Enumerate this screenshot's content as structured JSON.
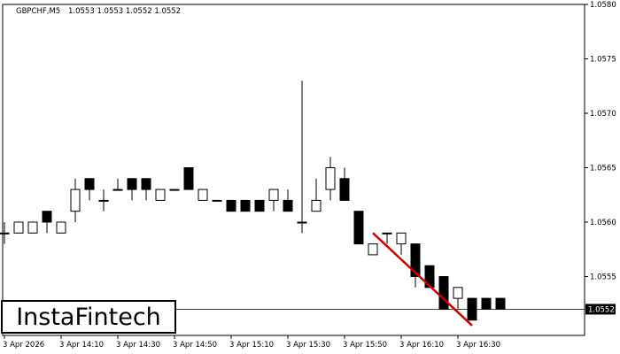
{
  "header": {
    "symbol": "GBPCHF,M5",
    "quote": "1.0553 1.0553 1.0552 1.0552"
  },
  "logo": {
    "text": "InstaFintech"
  },
  "colors": {
    "bull_body": "#ffffff",
    "bear_body": "#000000",
    "outline": "#000000",
    "pattern_line": "#cc0000",
    "price_box": "#000000",
    "price_text": "#ffffff"
  },
  "chart_data": {
    "type": "candlestick",
    "symbol": "GBPCHF",
    "timeframe": "M5",
    "ylim": [
      1.0549,
      1.058
    ],
    "y_ticks": [
      "1.0580",
      "1.0575",
      "1.0570",
      "1.0565",
      "1.0560",
      "1.0555",
      "1.0552"
    ],
    "current_price": "1.0552",
    "x_ticks": [
      {
        "label": "3 Apr 2026",
        "index": 0
      },
      {
        "label": "3 Apr 14:10",
        "index": 4
      },
      {
        "label": "3 Apr 14:30",
        "index": 8
      },
      {
        "label": "3 Apr 14:50",
        "index": 12
      },
      {
        "label": "3 Apr 15:10",
        "index": 16
      },
      {
        "label": "3 Apr 15:30",
        "index": 20
      },
      {
        "label": "3 Apr 15:50",
        "index": 24
      },
      {
        "label": "3 Apr 16:10",
        "index": 28
      },
      {
        "label": "3 Apr 16:30",
        "index": 32
      }
    ],
    "candles": [
      {
        "o": 1.0559,
        "h": 1.056,
        "l": 1.0558,
        "c": 1.0559
      },
      {
        "o": 1.0559,
        "h": 1.056,
        "l": 1.0559,
        "c": 1.056
      },
      {
        "o": 1.0559,
        "h": 1.056,
        "l": 1.0559,
        "c": 1.056
      },
      {
        "o": 1.0561,
        "h": 1.0561,
        "l": 1.0559,
        "c": 1.056
      },
      {
        "o": 1.0559,
        "h": 1.056,
        "l": 1.0559,
        "c": 1.056
      },
      {
        "o": 1.0561,
        "h": 1.0564,
        "l": 1.056,
        "c": 1.0563
      },
      {
        "o": 1.0564,
        "h": 1.0564,
        "l": 1.0562,
        "c": 1.0563
      },
      {
        "o": 1.0562,
        "h": 1.0563,
        "l": 1.0561,
        "c": 1.0562
      },
      {
        "o": 1.0563,
        "h": 1.0564,
        "l": 1.0563,
        "c": 1.0563
      },
      {
        "o": 1.0564,
        "h": 1.0564,
        "l": 1.0562,
        "c": 1.0563
      },
      {
        "o": 1.0564,
        "h": 1.0564,
        "l": 1.0562,
        "c": 1.0563
      },
      {
        "o": 1.0562,
        "h": 1.0563,
        "l": 1.0562,
        "c": 1.0563
      },
      {
        "o": 1.0563,
        "h": 1.0563,
        "l": 1.0563,
        "c": 1.0563
      },
      {
        "o": 1.0565,
        "h": 1.0565,
        "l": 1.0563,
        "c": 1.0563
      },
      {
        "o": 1.0562,
        "h": 1.0563,
        "l": 1.0562,
        "c": 1.0563
      },
      {
        "o": 1.0562,
        "h": 1.0562,
        "l": 1.0562,
        "c": 1.0562
      },
      {
        "o": 1.0562,
        "h": 1.0562,
        "l": 1.0561,
        "c": 1.0561
      },
      {
        "o": 1.0562,
        "h": 1.0562,
        "l": 1.0561,
        "c": 1.0561
      },
      {
        "o": 1.0562,
        "h": 1.0562,
        "l": 1.0561,
        "c": 1.0561
      },
      {
        "o": 1.0562,
        "h": 1.0563,
        "l": 1.0561,
        "c": 1.0563
      },
      {
        "o": 1.0562,
        "h": 1.0563,
        "l": 1.0561,
        "c": 1.0561
      },
      {
        "o": 1.056,
        "h": 1.0573,
        "l": 1.0559,
        "c": 1.056
      },
      {
        "o": 1.0561,
        "h": 1.0564,
        "l": 1.0561,
        "c": 1.0562
      },
      {
        "o": 1.0563,
        "h": 1.0566,
        "l": 1.0562,
        "c": 1.0565
      },
      {
        "o": 1.0564,
        "h": 1.0565,
        "l": 1.0562,
        "c": 1.0562
      },
      {
        "o": 1.0561,
        "h": 1.0561,
        "l": 1.0558,
        "c": 1.0558
      },
      {
        "o": 1.0557,
        "h": 1.0558,
        "l": 1.0557,
        "c": 1.0558
      },
      {
        "o": 1.0559,
        "h": 1.0559,
        "l": 1.0558,
        "c": 1.0559
      },
      {
        "o": 1.0558,
        "h": 1.0559,
        "l": 1.0557,
        "c": 1.0559
      },
      {
        "o": 1.0558,
        "h": 1.0558,
        "l": 1.0554,
        "c": 1.0555
      },
      {
        "o": 1.0556,
        "h": 1.0556,
        "l": 1.0554,
        "c": 1.0554
      },
      {
        "o": 1.0555,
        "h": 1.0555,
        "l": 1.0552,
        "c": 1.0552
      },
      {
        "o": 1.0553,
        "h": 1.0554,
        "l": 1.0552,
        "c": 1.0554
      },
      {
        "o": 1.0553,
        "h": 1.0553,
        "l": 1.0551,
        "c": 1.0551
      },
      {
        "o": 1.0553,
        "h": 1.0553,
        "l": 1.0552,
        "c": 1.0552
      },
      {
        "o": 1.0553,
        "h": 1.0553,
        "l": 1.0552,
        "c": 1.0552
      }
    ],
    "pattern_line": {
      "from": {
        "index": 26,
        "price": 1.0559
      },
      "to": {
        "index": 33,
        "price": 1.05505
      }
    },
    "grid": false
  }
}
